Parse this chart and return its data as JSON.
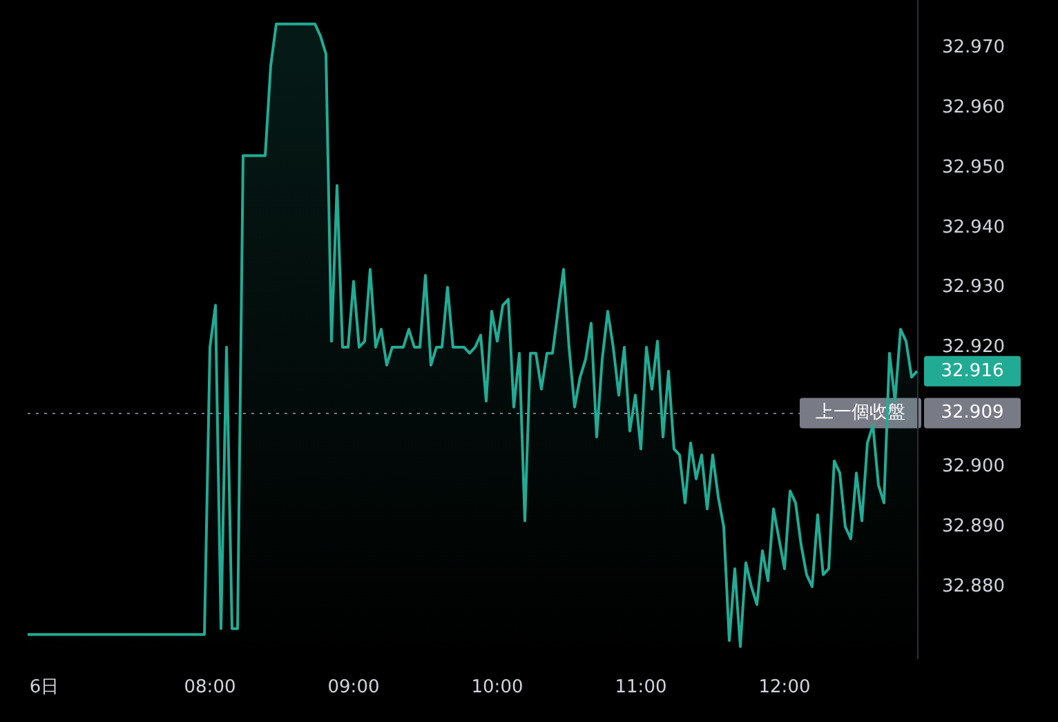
{
  "chart_data": {
    "type": "area",
    "categories": [
      null,
      null,
      null,
      "6日",
      null,
      null,
      null,
      null,
      null,
      null,
      null,
      null,
      null,
      null,
      null,
      null,
      null,
      null,
      null,
      null,
      null,
      null,
      null,
      null,
      null,
      null,
      null,
      null,
      null,
      null,
      null,
      null,
      null,
      "08:00",
      null,
      null,
      null,
      null,
      null,
      null,
      null,
      null,
      null,
      null,
      null,
      null,
      null,
      null,
      null,
      null,
      null,
      null,
      null,
      null,
      null,
      null,
      null,
      null,
      null,
      "09:00",
      null,
      null,
      null,
      null,
      null,
      null,
      null,
      null,
      null,
      null,
      null,
      null,
      null,
      null,
      null,
      null,
      null,
      null,
      null,
      null,
      null,
      null,
      null,
      null,
      null,
      "10:00",
      null,
      null,
      null,
      null,
      null,
      null,
      null,
      null,
      null,
      null,
      null,
      null,
      null,
      null,
      null,
      null,
      null,
      null,
      null,
      null,
      null,
      null,
      null,
      null,
      null,
      "11:00",
      null,
      null,
      null,
      null,
      null,
      null,
      null,
      null,
      null,
      null,
      null,
      null,
      null,
      null,
      null,
      null,
      null,
      null,
      null,
      null,
      null,
      null,
      null,
      null,
      null,
      "12:00",
      null,
      null,
      null,
      null,
      null,
      null,
      null,
      null,
      null,
      null,
      null,
      null,
      null,
      null,
      null,
      null,
      null,
      null,
      null,
      null,
      null,
      null,
      null,
      null
    ],
    "series": [
      {
        "color": "#22ab94",
        "values": [
          32.872,
          32.872,
          32.872,
          32.872,
          32.872,
          32.872,
          32.872,
          32.872,
          32.872,
          32.872,
          32.872,
          32.872,
          32.872,
          32.872,
          32.872,
          32.872,
          32.872,
          32.872,
          32.872,
          32.872,
          32.872,
          32.872,
          32.872,
          32.872,
          32.872,
          32.872,
          32.872,
          32.872,
          32.872,
          32.872,
          32.872,
          32.872,
          32.872,
          32.92,
          32.927,
          32.873,
          32.92,
          32.873,
          32.873,
          32.952,
          32.952,
          32.952,
          32.952,
          32.952,
          32.967,
          32.974,
          32.974,
          32.974,
          32.974,
          32.974,
          32.974,
          32.974,
          32.974,
          32.972,
          32.969,
          32.921,
          32.947,
          32.92,
          32.92,
          32.931,
          32.92,
          32.921,
          32.933,
          32.92,
          32.923,
          32.917,
          32.92,
          32.92,
          32.92,
          32.923,
          32.92,
          32.92,
          32.932,
          32.917,
          32.92,
          32.92,
          32.93,
          32.92,
          32.92,
          32.92,
          32.919,
          32.92,
          32.922,
          32.911,
          32.926,
          32.921,
          32.927,
          32.928,
          32.91,
          32.919,
          32.891,
          32.919,
          32.919,
          32.913,
          32.919,
          32.919,
          32.926,
          32.933,
          32.92,
          32.91,
          32.915,
          32.918,
          32.924,
          32.905,
          32.918,
          32.926,
          32.92,
          32.912,
          32.92,
          32.906,
          32.912,
          32.903,
          32.92,
          32.913,
          32.921,
          32.905,
          32.916,
          32.903,
          32.902,
          32.894,
          32.904,
          32.898,
          32.902,
          32.893,
          32.902,
          32.895,
          32.89,
          32.871,
          32.883,
          32.87,
          32.884,
          32.88,
          32.877,
          32.886,
          32.881,
          32.893,
          32.888,
          32.883,
          32.896,
          32.894,
          32.887,
          32.882,
          32.88,
          32.892,
          32.882,
          32.883,
          32.901,
          32.899,
          32.89,
          32.888,
          32.899,
          32.891,
          32.904,
          32.907,
          32.897,
          32.894,
          32.919,
          32.911,
          32.923,
          32.921,
          32.915,
          32.916
        ]
      }
    ],
    "ylim": [
      32.868,
      32.978
    ],
    "yticks": [
      {
        "value": 32.88,
        "label": "32.880"
      },
      {
        "value": 32.89,
        "label": "32.890"
      },
      {
        "value": 32.9,
        "label": "32.900"
      },
      {
        "value": 32.92,
        "label": "32.920"
      },
      {
        "value": 32.93,
        "label": "32.930"
      },
      {
        "value": 32.94,
        "label": "32.940"
      },
      {
        "value": 32.95,
        "label": "32.950"
      },
      {
        "value": 32.96,
        "label": "32.960"
      },
      {
        "value": 32.97,
        "label": "32.970"
      }
    ],
    "ref_lines": [
      {
        "axis": "y",
        "value": 32.909,
        "label": "上一個收盤",
        "color": "#787b86",
        "line_style": "dotted"
      }
    ],
    "annotations": [
      "32.916",
      "32.909"
    ],
    "grid": false
  }
}
